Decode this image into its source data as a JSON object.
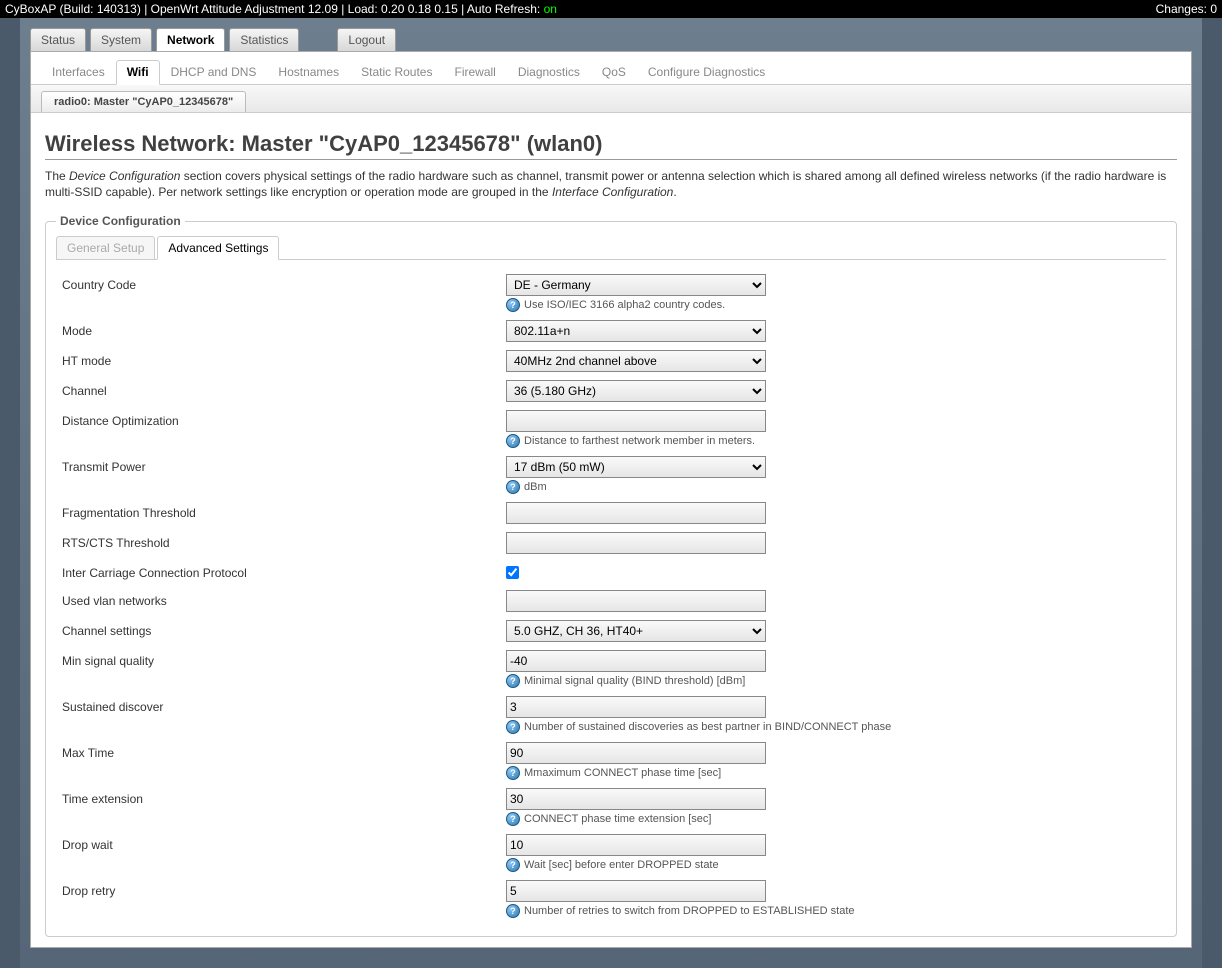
{
  "topbar": {
    "left_prefix": "CyBoxAP (Build: 140313) | OpenWrt Attitude Adjustment 12.09 | Load: 0.20 0.18 0.15 | Auto Refresh: ",
    "on": "on",
    "right": "Changes: 0"
  },
  "tabs1": {
    "items": [
      "Status",
      "System",
      "Network",
      "Statistics"
    ],
    "active": "Network",
    "logout": "Logout"
  },
  "tabs2": {
    "items": [
      "Interfaces",
      "Wifi",
      "DHCP and DNS",
      "Hostnames",
      "Static Routes",
      "Firewall",
      "Diagnostics",
      "QoS",
      "Configure Diagnostics"
    ],
    "active": "Wifi"
  },
  "tabs3": {
    "label": "radio0: Master \"CyAP0_12345678\""
  },
  "page_title": "Wireless Network: Master \"CyAP0_12345678\" (wlan0)",
  "desc": {
    "p1a": "The ",
    "p1b": "Device Configuration",
    "p1c": " section covers physical settings of the radio hardware such as channel, transmit power or antenna selection which is shared among all defined wireless networks (if the radio hardware is multi-SSID capable). Per network settings like encryption or operation mode are grouped in the ",
    "p1d": "Interface Configuration",
    "p1e": "."
  },
  "fieldset_legend": "Device Configuration",
  "inner_tabs": {
    "general": "General Setup",
    "advanced": "Advanced Settings"
  },
  "fields": {
    "country_code": {
      "label": "Country Code",
      "value": "DE - Germany",
      "hint": "Use ISO/IEC 3166 alpha2 country codes."
    },
    "mode": {
      "label": "Mode",
      "value": "802.11a+n"
    },
    "ht_mode": {
      "label": "HT mode",
      "value": "40MHz 2nd channel above"
    },
    "channel": {
      "label": "Channel",
      "value": "36 (5.180 GHz)"
    },
    "distance": {
      "label": "Distance Optimization",
      "value": "",
      "hint": "Distance to farthest network member in meters."
    },
    "txpower": {
      "label": "Transmit Power",
      "value": "17 dBm (50 mW)",
      "hint": "dBm"
    },
    "fragthresh": {
      "label": "Fragmentation Threshold",
      "value": ""
    },
    "rtscts": {
      "label": "RTS/CTS Threshold",
      "value": ""
    },
    "iccp": {
      "label": "Inter Carriage Connection Protocol",
      "checked": true
    },
    "usedvlan": {
      "label": "Used vlan networks",
      "value": ""
    },
    "chansettings": {
      "label": "Channel settings",
      "value": "5.0 GHZ, CH 36, HT40+"
    },
    "minsignal": {
      "label": "Min signal quality",
      "value": "-40",
      "hint": "Minimal signal quality (BIND threshold) [dBm]"
    },
    "sustained": {
      "label": "Sustained discover",
      "value": "3",
      "hint": "Number of sustained discoveries as best partner in BIND/CONNECT phase"
    },
    "maxtime": {
      "label": "Max Time",
      "value": "90",
      "hint": "Mmaximum CONNECT phase time [sec]"
    },
    "timeext": {
      "label": "Time extension",
      "value": "30",
      "hint": "CONNECT phase time extension [sec]"
    },
    "dropwait": {
      "label": "Drop wait",
      "value": "10",
      "hint": "Wait [sec] before enter DROPPED state"
    },
    "dropretry": {
      "label": "Drop retry",
      "value": "5",
      "hint": "Number of retries to switch from DROPPED to ESTABLISHED state"
    }
  }
}
